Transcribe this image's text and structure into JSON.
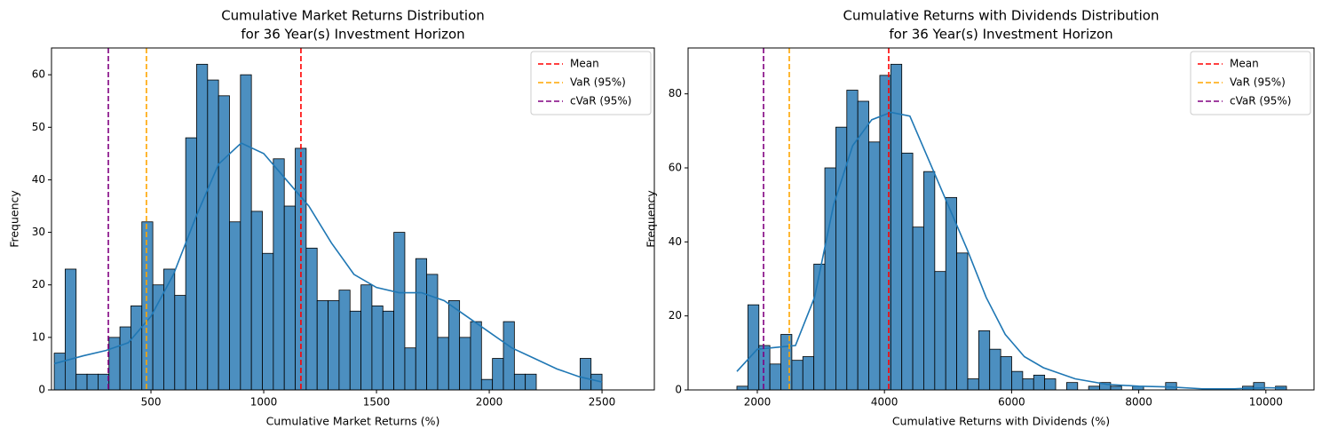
{
  "chart_data": [
    {
      "type": "histogram",
      "title": [
        "Cumulative Market Returns Distribution",
        "for 36 Year(s) Investment Horizon"
      ],
      "x_label": "Cumulative Market Returns (%)",
      "y_label": "Frequency",
      "bins": [
        71,
        119.6,
        168.2,
        216.7,
        265.3,
        313.9,
        362.5,
        411.1,
        459.6,
        508.2,
        556.8,
        605.4,
        654.0,
        702.5,
        751.1,
        799.7,
        848.3,
        896.9,
        945.4,
        994.0,
        1042.6,
        1091.2,
        1139.8,
        1188.3,
        1236.9,
        1285.5,
        1334.1,
        1382.7,
        1431.2,
        1479.8,
        1528.4,
        1577.0,
        1625.6,
        1674.1,
        1722.7,
        1771.3,
        1819.9,
        1868.5,
        1917.0,
        1965.6,
        2014.2,
        2062.8,
        2111.4,
        2159.9,
        2208.5,
        2257.1,
        2305.7,
        2354.3,
        2402.8,
        2451.4,
        2500.0
      ],
      "counts": [
        7,
        23,
        3,
        3,
        3,
        10,
        12,
        16,
        32,
        20,
        23,
        18,
        48,
        62,
        59,
        56,
        32,
        60,
        34,
        26,
        44,
        35,
        46,
        27,
        17,
        17,
        19,
        15,
        20,
        16,
        15,
        30,
        8,
        25,
        22,
        10,
        17,
        10,
        13,
        2,
        6,
        13,
        3,
        3,
        0,
        0,
        0,
        0,
        6,
        3
      ],
      "color": "#4c8fc0",
      "kde": {
        "color": "#1f77b4",
        "x": [
          71,
          200,
          300,
          400,
          500,
          600,
          700,
          800,
          900,
          1000,
          1100,
          1200,
          1300,
          1400,
          1500,
          1600,
          1700,
          1800,
          1900,
          2000,
          2100,
          2200,
          2300,
          2400,
          2500
        ],
        "y": [
          5,
          6.5,
          7.5,
          9,
          14,
          22,
          33,
          43,
          47,
          45,
          40,
          35,
          28,
          22,
          19.5,
          18.5,
          18.5,
          17,
          14,
          11,
          8,
          6,
          4,
          2.5,
          1.5
        ]
      },
      "vlines": [
        {
          "name": "Mean",
          "value": 1165,
          "color": "#ff0000"
        },
        {
          "name": "VaR (95%)",
          "value": 480,
          "color": "#ffa500"
        },
        {
          "name": "cVaR (95%)",
          "value": 311,
          "color": "#800080"
        }
      ],
      "legend": "upper right",
      "xlim": [
        59,
        2732
      ],
      "xticks": [
        500,
        1000,
        1500,
        2000,
        2500
      ],
      "ylim": [
        0,
        65.1
      ],
      "yticks": [
        0,
        10,
        20,
        30,
        40,
        50,
        60
      ]
    },
    {
      "type": "histogram",
      "title": [
        "Cumulative Returns with Dividends Distribution",
        "for 36 Year(s) Investment Horizon"
      ],
      "x_label": "Cumulative Returns with Dividends (%)",
      "y_label": "Frequency",
      "bins": [
        1679,
        1851.9,
        2024.8,
        2197.7,
        2370.6,
        2543.5,
        2716.4,
        2889.3,
        3062.2,
        3235.1,
        3408,
        3580.9,
        3753.8,
        3926.7,
        4099.6,
        4272.5,
        4445.4,
        4618.3,
        4791.2,
        4964.1,
        5137,
        5309.9,
        5482.8,
        5655.7,
        5828.6,
        6001.5,
        6174.4,
        6347.3,
        6520.2,
        6693.1,
        6866,
        7038.9,
        7211.8,
        7384.7,
        7557.6,
        7730.5,
        7903.4,
        8076.3,
        8249.2,
        8422.1,
        8595,
        8767.9,
        8940.8,
        9113.7,
        9286.6,
        9459.5,
        9632.4,
        9805.3,
        9978.2,
        10151.1,
        10324
      ],
      "counts": [
        1,
        23,
        12,
        7,
        15,
        8,
        9,
        34,
        60,
        71,
        81,
        78,
        67,
        85,
        88,
        64,
        44,
        59,
        32,
        52,
        37,
        3,
        16,
        11,
        9,
        5,
        3,
        4,
        3,
        0,
        2,
        0,
        1,
        2,
        1,
        0,
        1,
        0,
        0,
        2,
        0,
        0,
        0,
        0,
        0,
        0,
        1,
        2,
        0,
        1
      ],
      "color": "#4c8fc0",
      "kde": {
        "color": "#1f77b4",
        "x": [
          1679,
          2000,
          2300,
          2600,
          2900,
          3200,
          3500,
          3800,
          4100,
          4400,
          4700,
          5000,
          5300,
          5600,
          5900,
          6200,
          6500,
          7000,
          7500,
          8000,
          8500,
          9000,
          9500,
          10000,
          10300
        ],
        "y": [
          5,
          11,
          11.5,
          12,
          25,
          50,
          66,
          73,
          75,
          74,
          62,
          50,
          38,
          25,
          15,
          9,
          6,
          3,
          1.5,
          1,
          0.8,
          0.3,
          0.3,
          0.6,
          0.5
        ]
      },
      "vlines": [
        {
          "name": "Mean",
          "value": 4067,
          "color": "#ff0000"
        },
        {
          "name": "VaR (95%)",
          "value": 2503,
          "color": "#ffa500"
        },
        {
          "name": "cVaR (95%)",
          "value": 2098,
          "color": "#800080"
        }
      ],
      "legend": "upper right",
      "xlim": [
        911,
        10757
      ],
      "xticks": [
        2000,
        4000,
        6000,
        8000,
        10000
      ],
      "ylim": [
        0,
        92.4
      ],
      "yticks": [
        0,
        20,
        40,
        60,
        80
      ]
    }
  ]
}
